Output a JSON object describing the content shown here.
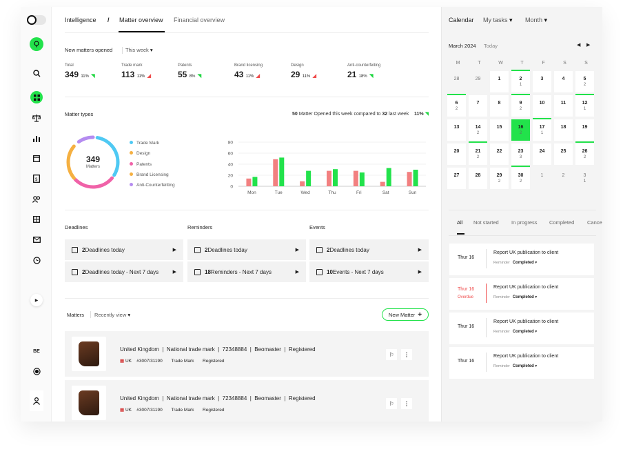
{
  "sidebar": {
    "region_badge": "BE"
  },
  "breadcrumb": {
    "root": "Intelligence",
    "sep": "/",
    "active": "Matter overview",
    "other": "Financial overview"
  },
  "new_matters": {
    "title": "New matters opened",
    "period": "This week",
    "stats": [
      {
        "label": "Total",
        "value": "349",
        "pct": "11%",
        "trend": "up"
      },
      {
        "label": "Trade mark",
        "value": "113",
        "pct": "11%",
        "trend": "down"
      },
      {
        "label": "Patents",
        "value": "55",
        "pct": "8%",
        "trend": "up"
      },
      {
        "label": "Brand licensing",
        "value": "43",
        "pct": "11%",
        "trend": "down"
      },
      {
        "label": "Design",
        "value": "29",
        "pct": "11%",
        "trend": "down"
      },
      {
        "label": "Anti-counterfeiting",
        "value": "21",
        "pct": "18%",
        "trend": "up"
      }
    ]
  },
  "matter_types": {
    "title": "Matter types",
    "summary_a": "50",
    "summary_b": " Matter Opened this week compared to ",
    "summary_c": "32",
    "summary_d": " last week",
    "summary_pct": "11%",
    "donut_total": "349",
    "donut_label": "Matters",
    "legend": [
      {
        "name": "Trade Mark",
        "color": "#4fc9f3"
      },
      {
        "name": "Design",
        "color": "#f5b041"
      },
      {
        "name": "Patents",
        "color": "#f062a8"
      },
      {
        "name": "Brand Licensing",
        "color": "#f5b041"
      },
      {
        "name": "Anti-Counterfeitting",
        "color": "#b58cf0"
      }
    ]
  },
  "chart_data": {
    "type": "bar",
    "categories": [
      "Mon",
      "Tue",
      "Wed",
      "Thu",
      "Fri",
      "Sat",
      "Sun"
    ],
    "series": [
      {
        "values": [
          14,
          49,
          9,
          28,
          28,
          8,
          26
        ],
        "color": "#f28080"
      },
      {
        "values": [
          17,
          52,
          28,
          31,
          25,
          33,
          30
        ],
        "color": "#22e24b"
      }
    ],
    "yticks": [
      "0",
      "20",
      "40",
      "60",
      "80"
    ],
    "ylim": [
      0,
      80
    ],
    "grid": true
  },
  "deadlines": {
    "title": "Deadlines",
    "today_count": "2",
    "today_label": " Deadlines today",
    "week_count": "2",
    "week_label": " Deadlines today - Next 7 days"
  },
  "reminders": {
    "title": "Reminders",
    "today_count": "2",
    "today_label": " Deadlines today",
    "week_count": "18",
    "week_label": " Reminders - Next 7 days"
  },
  "events": {
    "title": "Events",
    "today_count": "2",
    "today_label": " Deadlines today",
    "week_count": "10",
    "week_label": " Events - Next 7 days"
  },
  "matters": {
    "title": "Matters",
    "view": "Recently view",
    "new_button": "New Matter",
    "rows": [
      {
        "country": "United Kingdom",
        "type": "National trade mark",
        "number": "72348884",
        "brand": "Beomaster",
        "status": "Registered",
        "code": "UK",
        "ref": "#3007/31190",
        "kind": "Trade Mark",
        "sub_status": "Registered"
      },
      {
        "country": "United Kingdom",
        "type": "National trade mark",
        "number": "72348884",
        "brand": "Beomaster",
        "status": "Registered",
        "code": "UK",
        "ref": "#3007/31190",
        "kind": "Trade Mark",
        "sub_status": "Registered"
      }
    ]
  },
  "calendar": {
    "title": "Calendar",
    "filter": "My tasks",
    "view": "Month",
    "month": "March 2024",
    "today": "Today",
    "weekdays": [
      "M",
      "T",
      "W",
      "T",
      "F",
      "S",
      "S"
    ],
    "days": [
      {
        "n": "28",
        "c": "",
        "muted": true
      },
      {
        "n": "29",
        "c": "",
        "muted": true
      },
      {
        "n": "1",
        "c": ""
      },
      {
        "n": "2",
        "c": "1",
        "top": true
      },
      {
        "n": "3",
        "c": ""
      },
      {
        "n": "4",
        "c": ""
      },
      {
        "n": "5",
        "c": "2"
      },
      {
        "n": "6",
        "c": "2",
        "top": true
      },
      {
        "n": "7",
        "c": ""
      },
      {
        "n": "8",
        "c": ""
      },
      {
        "n": "9",
        "c": "2",
        "top": true
      },
      {
        "n": "10",
        "c": ""
      },
      {
        "n": "11",
        "c": ""
      },
      {
        "n": "12",
        "c": "1",
        "top": true
      },
      {
        "n": "13",
        "c": ""
      },
      {
        "n": "14",
        "c": "2",
        "bot": true
      },
      {
        "n": "15",
        "c": ""
      },
      {
        "n": "16",
        "c": "2",
        "sel": true
      },
      {
        "n": "17",
        "c": "1",
        "top": true
      },
      {
        "n": "18",
        "c": ""
      },
      {
        "n": "19",
        "c": "",
        "bot": true
      },
      {
        "n": "20",
        "c": ""
      },
      {
        "n": "21",
        "c": "2"
      },
      {
        "n": "22",
        "c": ""
      },
      {
        "n": "23",
        "c": "3",
        "bot": true
      },
      {
        "n": "24",
        "c": ""
      },
      {
        "n": "25",
        "c": ""
      },
      {
        "n": "26",
        "c": "2"
      },
      {
        "n": "27",
        "c": ""
      },
      {
        "n": "28",
        "c": ""
      },
      {
        "n": "29",
        "c": "2"
      },
      {
        "n": "30",
        "c": "2"
      },
      {
        "n": "1",
        "c": "",
        "muted": true
      },
      {
        "n": "2",
        "c": "",
        "muted": true
      },
      {
        "n": "3",
        "c": "1",
        "muted": true
      }
    ],
    "tabs": [
      "All",
      "Not started",
      "In progress",
      "Completed",
      "Cance"
    ],
    "tasks": [
      {
        "date": "Thur 16",
        "overdue": "",
        "title": "Report UK publication to client",
        "kind": "Reminder",
        "status": "Completed"
      },
      {
        "date": "Thur 16",
        "overdue": "Overdue",
        "title": "Report UK publication to client",
        "kind": "Reminder",
        "status": "Completed"
      },
      {
        "date": "Thur 16",
        "overdue": "",
        "title": "Report UK publication to client",
        "kind": "Reminder",
        "status": "Completed"
      },
      {
        "date": "Thur 16",
        "overdue": "",
        "title": "Report UK publication to client",
        "kind": "Reminder",
        "status": "Completed"
      }
    ]
  }
}
